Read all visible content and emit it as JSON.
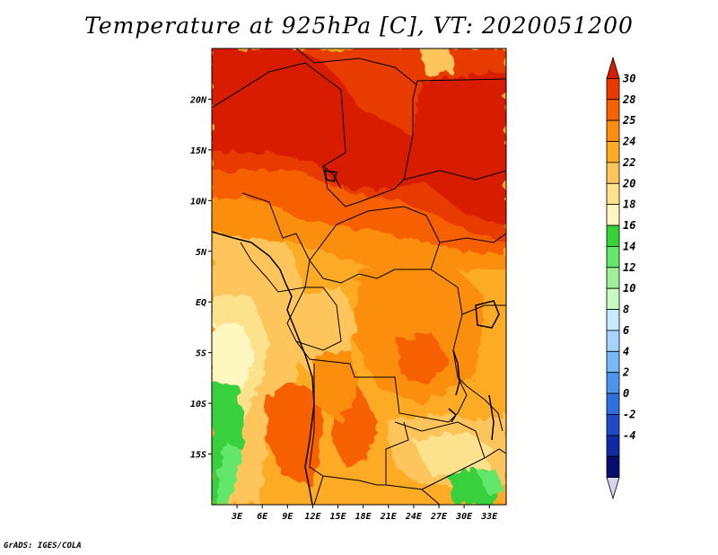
{
  "title": "Temperature at 925hPa [C], VT: 2020051200",
  "credit": "GrADS: IGES/COLA",
  "map": {
    "units": "C",
    "valid_time": "2020051200",
    "level": "925hPa",
    "lon_range": [
      0,
      35
    ],
    "lat_range": [
      -20,
      25
    ],
    "lon_ticks": [
      "3E",
      "6E",
      "9E",
      "12E",
      "15E",
      "18E",
      "21E",
      "24E",
      "27E",
      "30E",
      "33E"
    ],
    "lat_ticks": [
      "20N",
      "15N",
      "10N",
      "5N",
      "EQ",
      "5S",
      "10S",
      "15S"
    ]
  },
  "colorbar": {
    "labels": [
      "30",
      "28",
      "25",
      "24",
      "22",
      "20",
      "18",
      "16",
      "14",
      "12",
      "10",
      "8",
      "6",
      "4",
      "2",
      "0",
      "-2",
      "-4"
    ],
    "colors": [
      "#d71d00",
      "#e83a00",
      "#f76100",
      "#fb8e11",
      "#fdaa25",
      "#fec55c",
      "#fde28e",
      "#fff6c0",
      "#37d13c",
      "#64e76a",
      "#9df097",
      "#c8f9c3",
      "#c8ebff",
      "#a6d4ff",
      "#7ab7f7",
      "#4f94ec",
      "#2f6fde",
      "#1e4cc8",
      "#0f2aa3",
      "#080e70",
      "#d7d4f0"
    ]
  }
}
